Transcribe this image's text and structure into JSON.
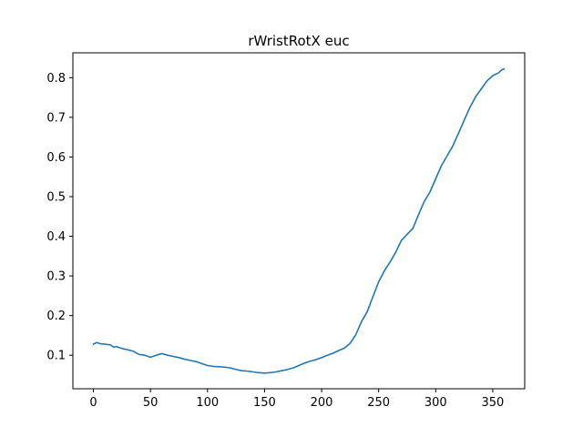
{
  "chart_data": {
    "type": "line",
    "title": "rWristRotX euc",
    "xlabel": "",
    "ylabel": "",
    "xlim": [
      -18,
      378
    ],
    "ylim": [
      0.0155,
      0.8627
    ],
    "x_ticks": [
      0,
      50,
      100,
      150,
      200,
      250,
      300,
      350
    ],
    "y_ticks": [
      0.1,
      0.2,
      0.3,
      0.4,
      0.5,
      0.6,
      0.7,
      0.8
    ],
    "grid": false,
    "legend": "none",
    "series": [
      {
        "color": "#1f77b4",
        "x": [
          0,
          3,
          6,
          10,
          15,
          18,
          20,
          25,
          30,
          35,
          40,
          45,
          50,
          55,
          60,
          65,
          70,
          75,
          80,
          85,
          90,
          95,
          100,
          105,
          110,
          115,
          120,
          125,
          130,
          135,
          140,
          145,
          150,
          155,
          160,
          165,
          170,
          175,
          180,
          185,
          190,
          195,
          200,
          205,
          210,
          215,
          220,
          225,
          230,
          235,
          240,
          245,
          250,
          255,
          260,
          265,
          270,
          275,
          280,
          285,
          290,
          295,
          300,
          305,
          310,
          315,
          320,
          325,
          330,
          335,
          340,
          345,
          350,
          355,
          358,
          360
        ],
        "y": [
          0.128,
          0.132,
          0.129,
          0.128,
          0.126,
          0.12,
          0.122,
          0.117,
          0.114,
          0.11,
          0.102,
          0.1,
          0.095,
          0.1,
          0.104,
          0.1,
          0.097,
          0.094,
          0.09,
          0.087,
          0.084,
          0.079,
          0.074,
          0.072,
          0.071,
          0.07,
          0.068,
          0.064,
          0.061,
          0.06,
          0.058,
          0.056,
          0.055,
          0.056,
          0.058,
          0.061,
          0.064,
          0.068,
          0.074,
          0.08,
          0.085,
          0.089,
          0.094,
          0.1,
          0.105,
          0.112,
          0.118,
          0.13,
          0.152,
          0.185,
          0.21,
          0.248,
          0.285,
          0.313,
          0.335,
          0.36,
          0.39,
          0.405,
          0.42,
          0.455,
          0.488,
          0.512,
          0.545,
          0.578,
          0.603,
          0.628,
          0.66,
          0.693,
          0.725,
          0.752,
          0.772,
          0.792,
          0.805,
          0.812,
          0.82,
          0.822
        ]
      }
    ]
  }
}
